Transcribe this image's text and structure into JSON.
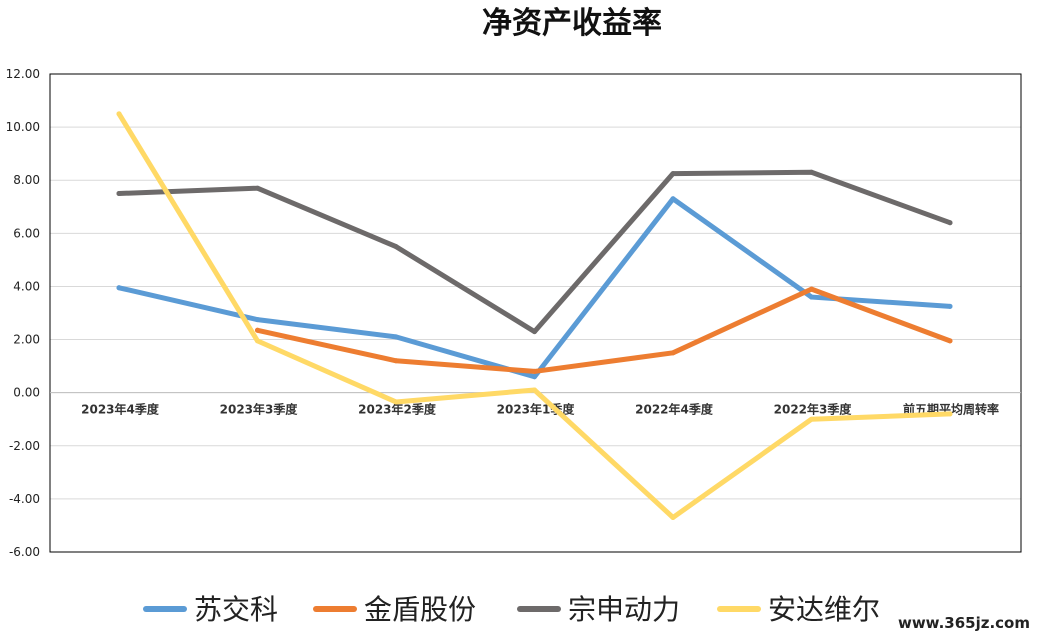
{
  "chart_data": {
    "type": "line",
    "title": "净资产收益率",
    "categories": [
      "2023年4季度",
      "2023年3季度",
      "2023年2季度",
      "2023年1季度",
      "2022年4季度",
      "2022年3季度",
      "前五期平均周转率"
    ],
    "ylim": [
      -6,
      12
    ],
    "yticks": [
      "12.00",
      "10.00",
      "8.00",
      "6.00",
      "4.00",
      "2.00",
      "0.00",
      "-2.00",
      "-4.00",
      "-6.00"
    ],
    "grid": true,
    "legend_position": "bottom",
    "series": [
      {
        "name": "苏交科",
        "color": "#5b9bd5",
        "values": [
          3.95,
          2.75,
          2.1,
          0.6,
          7.3,
          3.6,
          3.25
        ]
      },
      {
        "name": "金盾股份",
        "color": "#ed7d31",
        "values": [
          null,
          2.35,
          1.2,
          0.8,
          1.5,
          3.9,
          1.95
        ]
      },
      {
        "name": "宗申动力",
        "color": "#6d6a6a",
        "values": [
          7.5,
          7.7,
          5.5,
          2.3,
          8.25,
          8.3,
          6.4
        ]
      },
      {
        "name": "安达维尔",
        "color": "#ffd966",
        "values": [
          10.5,
          1.95,
          -0.35,
          0.1,
          -4.7,
          -1.0,
          -0.8
        ]
      }
    ]
  },
  "watermark": "www.365jz.com"
}
